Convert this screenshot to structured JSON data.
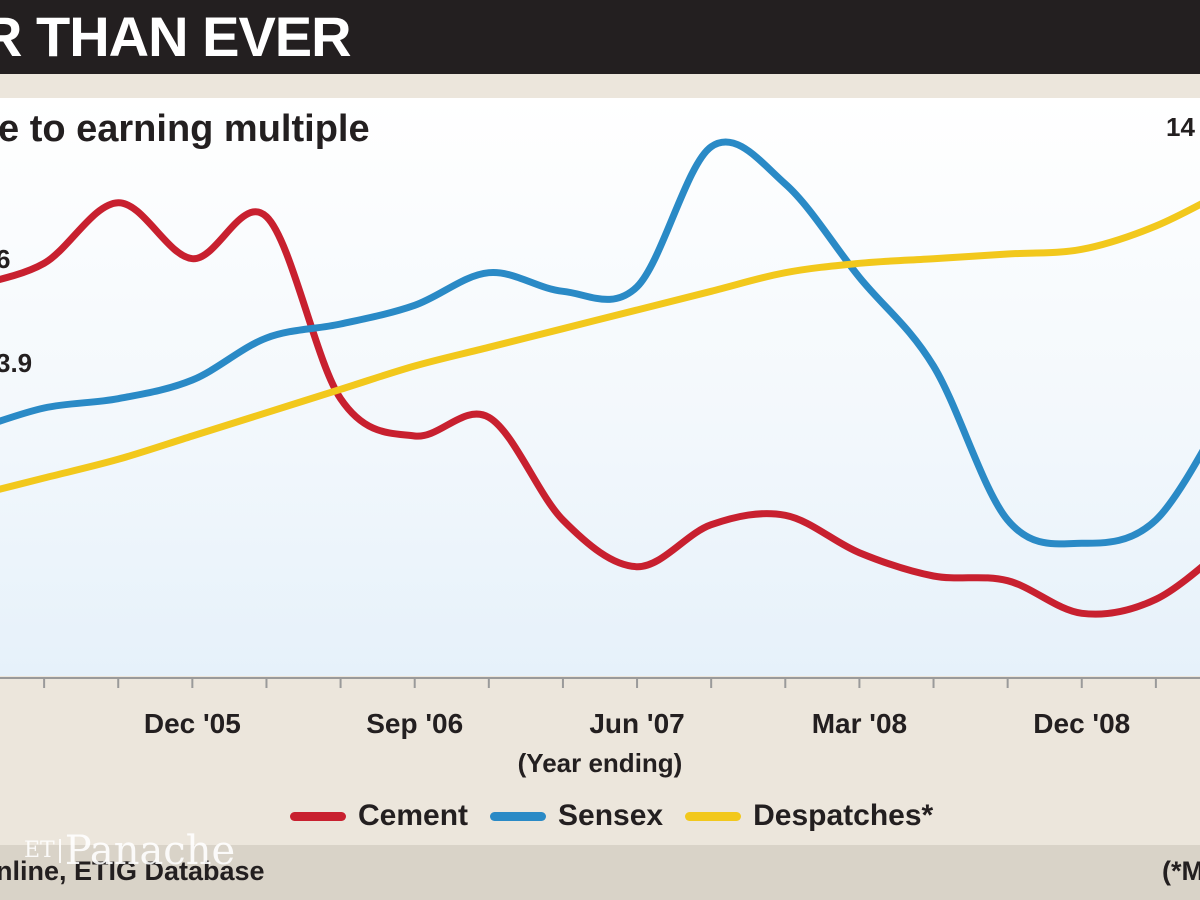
{
  "header": {
    "headline": "R THAN EVER",
    "subtitle": "e to earning multiple"
  },
  "colors": {
    "cement": "#c8202f",
    "sensex": "#2a8ac6",
    "despatches": "#f2c81c"
  },
  "chart_data": {
    "type": "line",
    "subtitle": "e to earning multiple",
    "xlabel": "(Year ending)",
    "x_tick_labels": [
      "Dec '05",
      "Sep '06",
      "Jun '07",
      "Mar '08",
      "Dec '08"
    ],
    "x": [
      "Mar '05",
      "Jun '05",
      "Sep '05",
      "Dec '05",
      "Mar '06",
      "Jun '06",
      "Sep '06",
      "Dec '06",
      "Mar '07",
      "Jun '07",
      "Sep '07",
      "Dec '07",
      "Mar '08",
      "Jun '08",
      "Sep '08",
      "Dec '08",
      "Mar '09",
      "Jun '09"
    ],
    "series": [
      {
        "name": "Cement",
        "color_key": "cement",
        "values": [
          17.0,
          17.5,
          18.8,
          17.6,
          18.5,
          14.6,
          13.8,
          14.2,
          12.0,
          11.0,
          11.9,
          12.1,
          11.3,
          10.8,
          10.7,
          10.0,
          10.3,
          11.5
        ]
      },
      {
        "name": "Sensex",
        "color_key": "sensex",
        "values": [
          13.9,
          14.4,
          14.6,
          15.0,
          15.9,
          16.2,
          16.6,
          17.3,
          16.9,
          17.0,
          20.0,
          19.2,
          17.2,
          15.3,
          12.0,
          11.5,
          12.0,
          14.5
        ]
      },
      {
        "name": "Despatches*",
        "color_key": "despatches",
        "values": [
          12.5,
          12.9,
          13.3,
          13.8,
          14.3,
          14.8,
          15.3,
          15.7,
          16.1,
          16.5,
          16.9,
          17.3,
          17.5,
          17.6,
          17.7,
          17.8,
          18.3,
          19.1
        ]
      }
    ],
    "value_labels": [
      "6",
      "3.9",
      "14"
    ],
    "legend": "bottom-center",
    "grid": false
  },
  "legend_items": [
    "Cement",
    "Sensex",
    "Despatches*"
  ],
  "footer": {
    "source": "nline, ETIG Database",
    "footnote": "(*M",
    "logo_et": "ET",
    "logo_word": "Panache"
  }
}
